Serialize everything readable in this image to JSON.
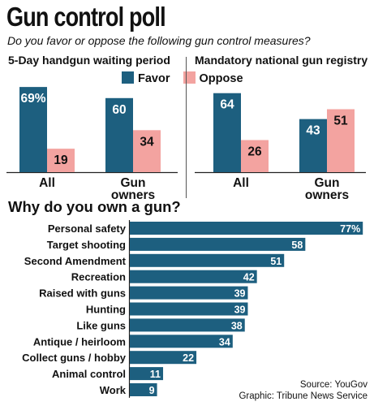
{
  "title": "Gun control poll",
  "subtitle": "Do you favor or oppose the following gun control measures?",
  "colors": {
    "favor": "#1d5f7f",
    "oppose": "#f3a3a0",
    "text_light": "#ffffff",
    "text_dark": "#111111"
  },
  "legend": {
    "favor": "Favor",
    "oppose": "Oppose"
  },
  "section2_title": "Why do you own a gun?",
  "source": {
    "line1": "Source: YouGov",
    "line2": "Graphic: Tribune News Service"
  },
  "chart_data": [
    {
      "type": "bar",
      "title": "5-Day handgun waiting period",
      "categories": [
        "All",
        "Gun owners"
      ],
      "series": [
        {
          "name": "Favor",
          "values": [
            69,
            60
          ],
          "labels": [
            "69%",
            "60"
          ]
        },
        {
          "name": "Oppose",
          "values": [
            19,
            34
          ],
          "labels": [
            "19",
            "34"
          ]
        }
      ]
    },
    {
      "type": "bar",
      "title": "Mandatory national gun registry",
      "categories": [
        "All",
        "Gun owners"
      ],
      "series": [
        {
          "name": "Favor",
          "values": [
            64,
            43
          ],
          "labels": [
            "64",
            "43"
          ]
        },
        {
          "name": "Oppose",
          "values": [
            26,
            51
          ],
          "labels": [
            "26",
            "51"
          ]
        }
      ]
    },
    {
      "type": "bar",
      "title": "Why do you own a gun?",
      "orientation": "horizontal",
      "categories": [
        "Personal safety",
        "Target shooting",
        "Second Amendment",
        "Recreation",
        "Raised with guns",
        "Hunting",
        "Like guns",
        "Antique / heirloom",
        "Collect guns / hobby",
        "Animal control",
        "Work"
      ],
      "values": [
        77,
        58,
        51,
        42,
        39,
        39,
        38,
        34,
        22,
        11,
        9
      ],
      "labels": [
        "77%",
        "58",
        "51",
        "42",
        "39",
        "39",
        "38",
        "34",
        "22",
        "11",
        "9"
      ]
    }
  ]
}
